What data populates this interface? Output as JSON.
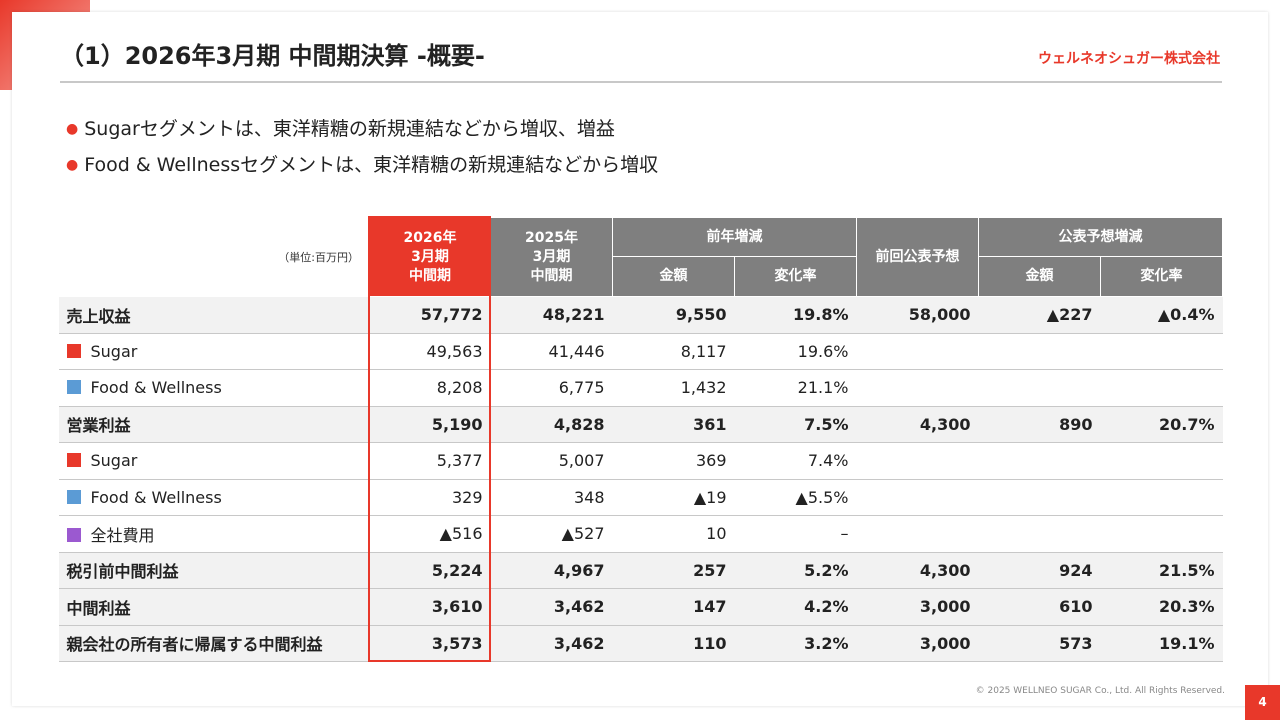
{
  "header": {
    "title": "（1）2026年3月期 中間期決算 -概要-",
    "company": "ウェルネオシュガー株式会社"
  },
  "bullets": [
    "Sugarセグメントは、東洋精糖の新規連結などから増収、増益",
    "Food & Wellnessセグメントは、東洋精糖の新規連結などから増収"
  ],
  "table": {
    "unit": "（単位:百万円）",
    "header_top": [
      {
        "text": "2026年\n3月期\n中間期",
        "rowspan": 2,
        "colspan": 1,
        "highlight": true
      },
      {
        "text": "2025年\n3月期\n中間期",
        "rowspan": 2,
        "colspan": 1
      },
      {
        "text": "前年増減",
        "rowspan": 1,
        "colspan": 2
      },
      {
        "text": "前回公表予想",
        "rowspan": 2,
        "colspan": 1
      },
      {
        "text": "公表予想増減",
        "rowspan": 1,
        "colspan": 2
      }
    ],
    "header_sub": [
      "金額",
      "変化率",
      "金額",
      "変化率"
    ],
    "rows": [
      {
        "label": "売上収益",
        "bold": true,
        "cells": [
          "57,772",
          "48,221",
          "9,550",
          "19.8%",
          "58,000",
          "▲227",
          "▲0.4%"
        ]
      },
      {
        "label": "Sugar",
        "marker": "#e8382a",
        "cells": [
          "49,563",
          "41,446",
          "8,117",
          "19.6%"
        ]
      },
      {
        "label": "Food & Wellness",
        "marker": "#5b9bd5",
        "cells": [
          "8,208",
          "6,775",
          "1,432",
          "21.1%"
        ]
      },
      {
        "label": "営業利益",
        "bold": true,
        "cells": [
          "5,190",
          "4,828",
          "361",
          "7.5%",
          "4,300",
          "890",
          "20.7%"
        ]
      },
      {
        "label": "Sugar",
        "marker": "#e8382a",
        "cells": [
          "5,377",
          "5,007",
          "369",
          "7.4%"
        ]
      },
      {
        "label": "Food & Wellness",
        "marker": "#5b9bd5",
        "cells": [
          "329",
          "348",
          "▲19",
          "▲5.5%"
        ]
      },
      {
        "label": "全社費用",
        "marker": "#9b59d0",
        "cells": [
          "▲516",
          "▲527",
          "10",
          "–"
        ]
      },
      {
        "label": "税引前中間利益",
        "bold": true,
        "cells": [
          "5,224",
          "4,967",
          "257",
          "5.2%",
          "4,300",
          "924",
          "21.5%"
        ]
      },
      {
        "label": "中間利益",
        "bold": true,
        "cells": [
          "3,610",
          "3,462",
          "147",
          "4.2%",
          "3,000",
          "610",
          "20.3%"
        ]
      },
      {
        "label": "親会社の所有者に帰属する中間利益",
        "bold": true,
        "cells": [
          "3,573",
          "3,462",
          "110",
          "3.2%",
          "3,000",
          "573",
          "19.1%"
        ]
      }
    ]
  },
  "footer": {
    "copyright": "© 2025 WELLNEO SUGAR Co., Ltd. All Rights Reserved.",
    "page": "4"
  }
}
